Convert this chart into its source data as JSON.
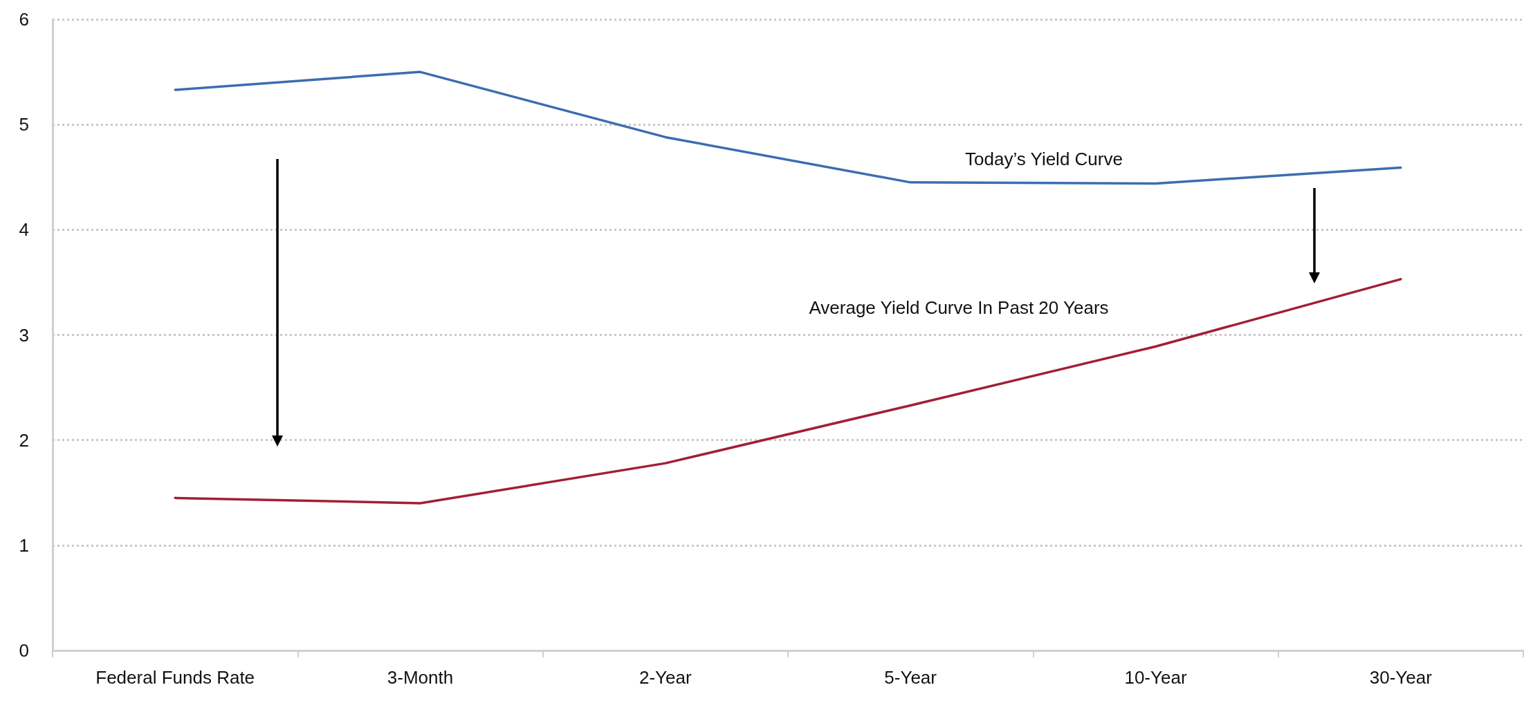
{
  "chart_data": {
    "type": "line",
    "categories": [
      "Federal Funds Rate",
      "3-Month",
      "2-Year",
      "5-Year",
      "10-Year",
      "30-Year"
    ],
    "series": [
      {
        "name": "Today’s Yield Curve",
        "color": "#3c6db0",
        "values": [
          5.33,
          5.5,
          4.88,
          4.45,
          4.44,
          4.59
        ]
      },
      {
        "name": "Average Yield Curve In Past 20 Years",
        "color": "#a21f35",
        "values": [
          1.45,
          1.4,
          1.78,
          2.33,
          2.89,
          3.53
        ]
      }
    ],
    "ylim": [
      0,
      6
    ],
    "yticks": [
      0,
      1,
      2,
      3,
      4,
      5,
      6
    ],
    "grid": "y",
    "legend": false,
    "marker": "none",
    "line_style": "solid"
  }
}
